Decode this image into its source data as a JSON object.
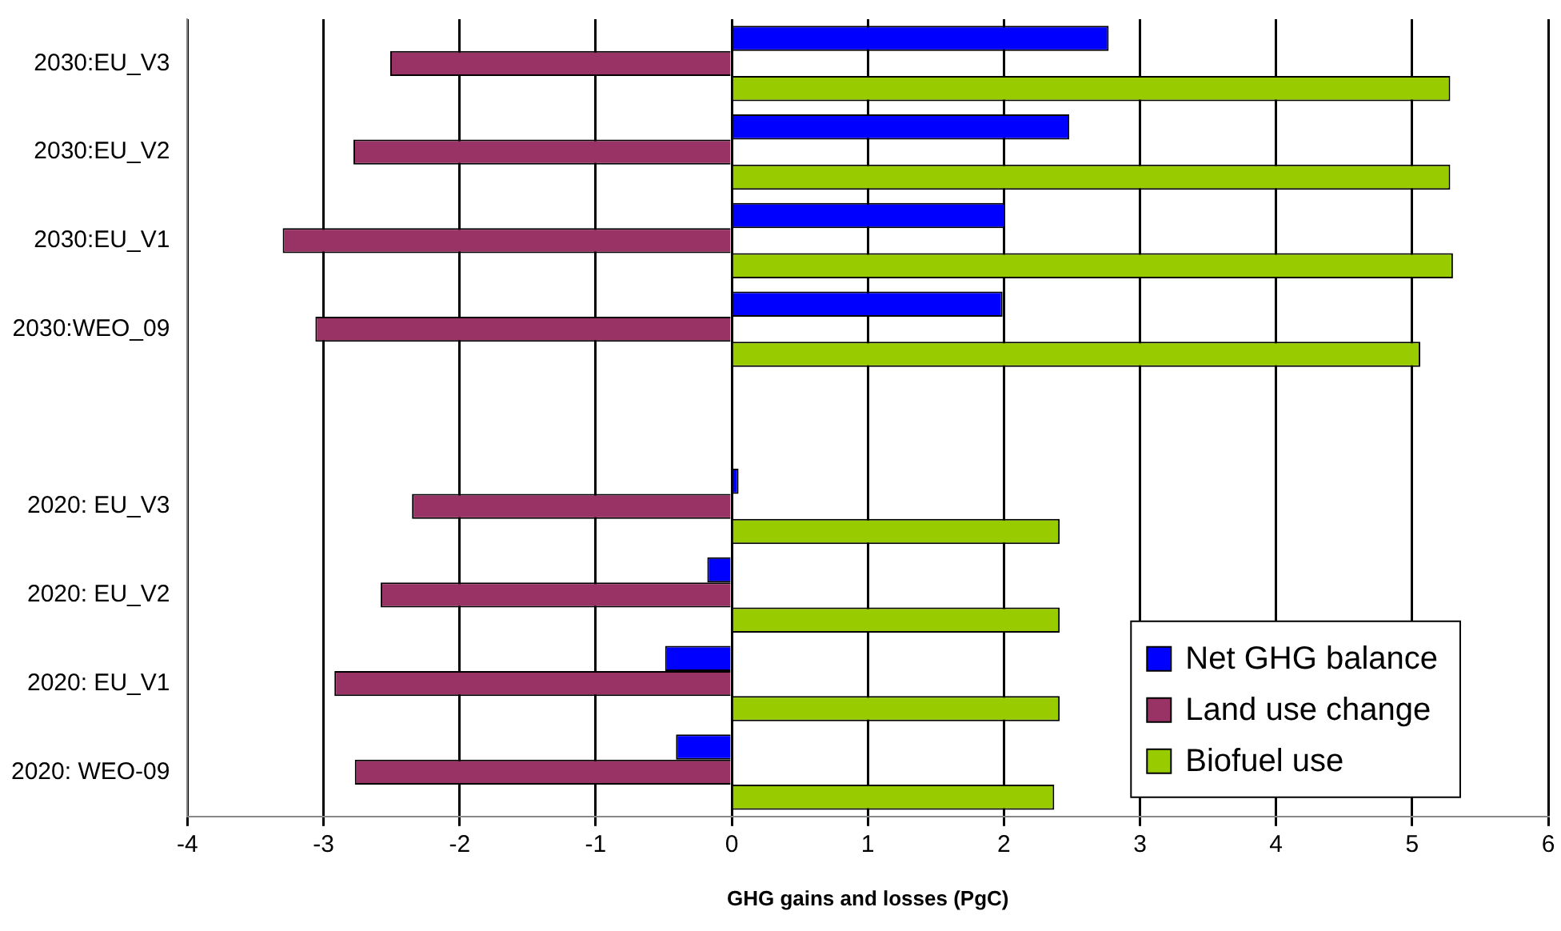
{
  "chart_data": {
    "type": "bar",
    "orientation": "horizontal",
    "xlabel": "GHG gains and losses (PgC)",
    "categories": [
      "2030:EU_V3",
      "2030:EU_V2",
      "2030:EU_V1",
      "2030:WEO_09",
      null,
      "2020: EU_V3",
      "2020: EU_V2",
      "2020: EU_V1",
      "2020: WEO-09"
    ],
    "series": [
      {
        "name": "Net GHG balance",
        "color": "#0000ff",
        "values": [
          2.77,
          2.48,
          2.01,
          1.99,
          null,
          0.05,
          -0.18,
          -0.49,
          -0.41
        ]
      },
      {
        "name": "Land use change",
        "color": "#993366",
        "values": [
          -2.51,
          -2.78,
          -3.3,
          -3.06,
          null,
          -2.35,
          -2.58,
          -2.92,
          -2.77
        ]
      },
      {
        "name": "Biofuel use",
        "color": "#99cc00",
        "values": [
          5.28,
          5.28,
          5.3,
          5.06,
          null,
          2.41,
          2.41,
          2.41,
          2.37
        ]
      }
    ],
    "xlim": [
      -4,
      6
    ],
    "xticks": [
      -4,
      -3,
      -2,
      -1,
      0,
      1,
      2,
      3,
      4,
      5,
      6
    ],
    "grid": "x",
    "legend": "bottom right"
  }
}
